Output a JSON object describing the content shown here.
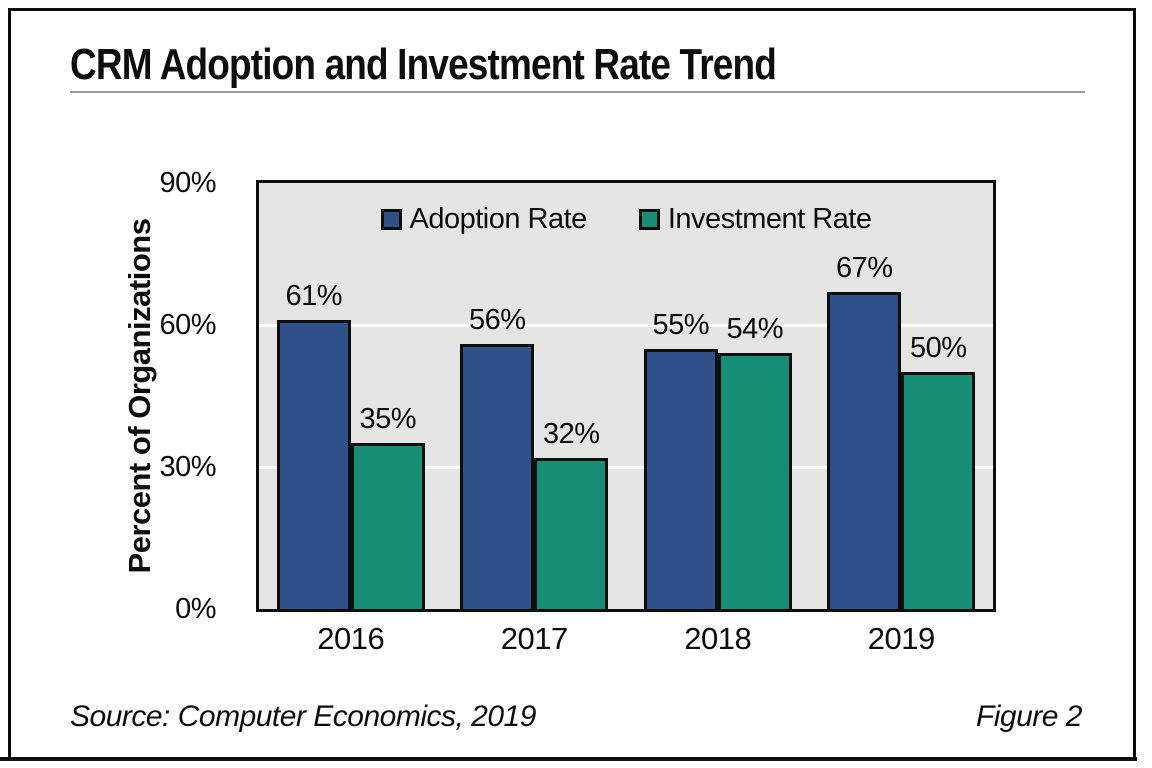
{
  "page": {
    "title": "CRM Adoption and Investment Rate Trend",
    "source": "Source: Computer Economics, 2019",
    "figure_label": "Figure 2"
  },
  "chart_data": {
    "type": "bar",
    "title": "CRM Adoption and Investment Rate Trend",
    "categories": [
      "2016",
      "2017",
      "2018",
      "2019"
    ],
    "series": [
      {
        "name": "Adoption Rate",
        "color": "#2F5189",
        "values": [
          61,
          56,
          55,
          67
        ]
      },
      {
        "name": "Investment Rate",
        "color": "#178F76",
        "values": [
          35,
          32,
          54,
          50
        ]
      }
    ],
    "data_labels": [
      "61%",
      "35%",
      "56%",
      "32%",
      "55%",
      "54%",
      "67%",
      "50%"
    ],
    "xlabel": "",
    "ylabel": "Percent of Organizations",
    "ylim": [
      0,
      90
    ],
    "yticks": [
      {
        "value": 0,
        "label": "0%"
      },
      {
        "value": 30,
        "label": "30%"
      },
      {
        "value": 60,
        "label": "60%"
      },
      {
        "value": 90,
        "label": "90%"
      }
    ],
    "gridlines": [
      30,
      60
    ],
    "grid": "horizontal-white-lines",
    "legend_position": "top-inside",
    "plot_background": "#E5E5E3",
    "bar_outline_color": "#0D0D0D"
  }
}
